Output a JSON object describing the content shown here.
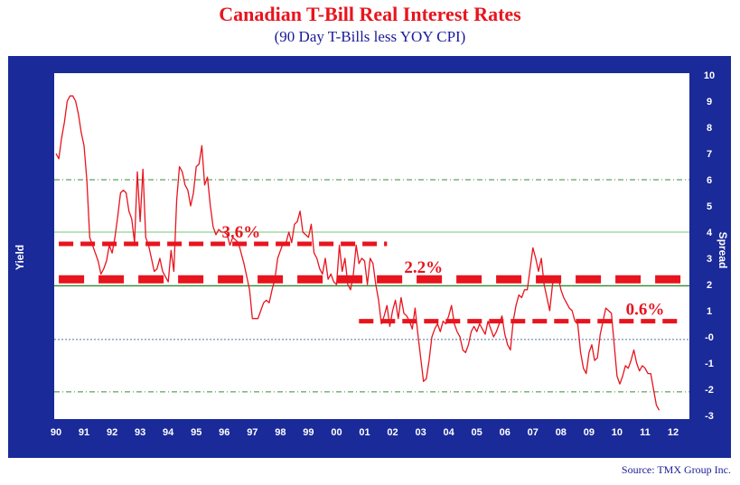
{
  "colors": {
    "frame": "#1a2a99",
    "plot": "#ffffff",
    "line": "#e8141e",
    "zero": "#2e8b2e",
    "grid": "#7fbf7f"
  },
  "source": "Source: TMX Group Inc.",
  "chart_data": {
    "type": "line",
    "title": "Canadian T-Bill Real Interest Rates",
    "subtitle": "(90 Day T-Bills less YOY CPI)",
    "ylabel_left": "Yield",
    "ylabel_right": "Spread",
    "xlim": [
      90,
      112.5
    ],
    "ylim": [
      -3,
      10
    ],
    "x_ticks": [
      "90",
      "91",
      "92",
      "93",
      "94",
      "95",
      "96",
      "97",
      "98",
      "99",
      "00",
      "01",
      "02",
      "03",
      "04",
      "05",
      "06",
      "07",
      "08",
      "09",
      "10",
      "11",
      "12"
    ],
    "y_ticks": [
      "10",
      "9",
      "8",
      "7",
      "6",
      "5",
      "4",
      "3",
      "2",
      "1",
      "-0",
      "-1",
      "-2",
      "-3"
    ],
    "reference_lines": [
      {
        "y": 6.0,
        "style": "dash-dot"
      },
      {
        "y": 4.0,
        "style": "solid-light"
      },
      {
        "y": 1.95,
        "style": "solid"
      },
      {
        "y": -0.1,
        "style": "dotted"
      },
      {
        "y": -2.1,
        "style": "dash-dot"
      }
    ],
    "average_lines": [
      {
        "label": "3.6%",
        "y": 3.55,
        "x_start": 90.1,
        "x_end": 101.8,
        "label_x": 96.6,
        "label_y": 3.8
      },
      {
        "label": "2.2%",
        "y": 2.2,
        "x_start": 90.1,
        "x_end": 112.3,
        "label_x": 103.1,
        "label_y": 2.45
      },
      {
        "label": "0.6%",
        "y": 0.6,
        "x_start": 100.8,
        "x_end": 112.3,
        "label_x": 111.0,
        "label_y": 0.85
      }
    ],
    "series": [
      {
        "values": [
          [
            90.0,
            7.0
          ],
          [
            90.1,
            6.8
          ],
          [
            90.2,
            7.6
          ],
          [
            90.3,
            8.2
          ],
          [
            90.4,
            9.0
          ],
          [
            90.5,
            9.2
          ],
          [
            90.6,
            9.2
          ],
          [
            90.7,
            9.0
          ],
          [
            90.8,
            8.5
          ],
          [
            90.9,
            7.8
          ],
          [
            91.0,
            7.3
          ],
          [
            91.1,
            6.0
          ],
          [
            91.2,
            3.8
          ],
          [
            91.3,
            3.5
          ],
          [
            91.4,
            3.2
          ],
          [
            91.5,
            2.9
          ],
          [
            91.6,
            2.4
          ],
          [
            91.7,
            2.6
          ],
          [
            91.8,
            2.9
          ],
          [
            91.9,
            3.5
          ],
          [
            92.0,
            3.2
          ],
          [
            92.1,
            3.8
          ],
          [
            92.2,
            4.6
          ],
          [
            92.3,
            5.5
          ],
          [
            92.4,
            5.6
          ],
          [
            92.5,
            5.5
          ],
          [
            92.6,
            4.8
          ],
          [
            92.7,
            4.5
          ],
          [
            92.8,
            3.6
          ],
          [
            92.9,
            6.3
          ],
          [
            93.0,
            4.4
          ],
          [
            93.1,
            6.4
          ],
          [
            93.2,
            3.8
          ],
          [
            93.3,
            3.5
          ],
          [
            93.4,
            3.0
          ],
          [
            93.5,
            2.5
          ],
          [
            93.6,
            2.6
          ],
          [
            93.7,
            3.0
          ],
          [
            93.8,
            2.5
          ],
          [
            93.9,
            2.3
          ],
          [
            94.0,
            2.1
          ],
          [
            94.1,
            3.3
          ],
          [
            94.2,
            2.5
          ],
          [
            94.3,
            5.2
          ],
          [
            94.4,
            6.5
          ],
          [
            94.5,
            6.3
          ],
          [
            94.6,
            5.8
          ],
          [
            94.7,
            5.6
          ],
          [
            94.8,
            5.0
          ],
          [
            94.9,
            5.5
          ],
          [
            95.0,
            6.5
          ],
          [
            95.1,
            6.6
          ],
          [
            95.2,
            7.3
          ],
          [
            95.3,
            5.8
          ],
          [
            95.4,
            6.1
          ],
          [
            95.5,
            5.0
          ],
          [
            95.6,
            4.2
          ],
          [
            95.7,
            3.9
          ],
          [
            95.8,
            4.1
          ],
          [
            95.9,
            4.0
          ],
          [
            96.0,
            4.0
          ],
          [
            96.1,
            3.9
          ],
          [
            96.2,
            3.5
          ],
          [
            96.3,
            3.8
          ],
          [
            96.5,
            3.6
          ],
          [
            96.6,
            3.2
          ],
          [
            96.7,
            2.8
          ],
          [
            96.8,
            2.3
          ],
          [
            96.9,
            1.8
          ],
          [
            97.0,
            0.7
          ],
          [
            97.1,
            0.7
          ],
          [
            97.2,
            0.7
          ],
          [
            97.3,
            1.0
          ],
          [
            97.4,
            1.3
          ],
          [
            97.5,
            1.4
          ],
          [
            97.6,
            1.3
          ],
          [
            97.7,
            1.8
          ],
          [
            97.8,
            2.2
          ],
          [
            97.9,
            3.0
          ],
          [
            98.0,
            3.3
          ],
          [
            98.1,
            3.6
          ],
          [
            98.2,
            3.6
          ],
          [
            98.3,
            4.0
          ],
          [
            98.4,
            3.6
          ],
          [
            98.5,
            4.3
          ],
          [
            98.6,
            4.4
          ],
          [
            98.7,
            4.8
          ],
          [
            98.8,
            4.0
          ],
          [
            98.9,
            3.9
          ],
          [
            99.0,
            3.8
          ],
          [
            99.1,
            4.3
          ],
          [
            99.2,
            3.2
          ],
          [
            99.3,
            3.0
          ],
          [
            99.4,
            2.6
          ],
          [
            99.5,
            2.4
          ],
          [
            99.6,
            3.0
          ],
          [
            99.7,
            2.2
          ],
          [
            99.8,
            2.4
          ],
          [
            99.9,
            2.1
          ],
          [
            100.0,
            2.0
          ],
          [
            100.1,
            3.5
          ],
          [
            100.2,
            2.5
          ],
          [
            100.3,
            3.0
          ],
          [
            100.4,
            2.0
          ],
          [
            100.5,
            1.8
          ],
          [
            100.6,
            2.4
          ],
          [
            100.7,
            3.5
          ],
          [
            100.8,
            2.8
          ],
          [
            100.9,
            3.0
          ],
          [
            101.0,
            2.9
          ],
          [
            101.1,
            2.0
          ],
          [
            101.2,
            3.0
          ],
          [
            101.3,
            2.8
          ],
          [
            101.4,
            2.0
          ],
          [
            101.5,
            1.4
          ],
          [
            101.6,
            0.5
          ],
          [
            101.7,
            0.8
          ],
          [
            101.8,
            1.2
          ],
          [
            101.9,
            0.4
          ],
          [
            102.0,
            1.0
          ],
          [
            102.1,
            1.4
          ],
          [
            102.2,
            0.7
          ],
          [
            102.3,
            1.5
          ],
          [
            102.4,
            0.9
          ],
          [
            102.5,
            0.8
          ],
          [
            102.6,
            0.6
          ],
          [
            102.7,
            0.3
          ],
          [
            102.8,
            1.1
          ],
          [
            102.9,
            0.1
          ],
          [
            103.0,
            -0.8
          ],
          [
            103.1,
            -1.7
          ],
          [
            103.2,
            -1.6
          ],
          [
            103.3,
            -0.9
          ],
          [
            103.4,
            0.0
          ],
          [
            103.5,
            0.3
          ],
          [
            103.6,
            0.5
          ],
          [
            103.7,
            0.2
          ],
          [
            103.8,
            0.6
          ],
          [
            103.9,
            0.5
          ],
          [
            104.0,
            0.8
          ],
          [
            104.1,
            1.2
          ],
          [
            104.2,
            0.5
          ],
          [
            104.3,
            0.2
          ],
          [
            104.4,
            0.0
          ],
          [
            104.5,
            -0.5
          ],
          [
            104.6,
            -0.6
          ],
          [
            104.7,
            -0.3
          ],
          [
            104.8,
            0.2
          ],
          [
            104.9,
            0.4
          ],
          [
            105.0,
            0.2
          ],
          [
            105.1,
            0.5
          ],
          [
            105.2,
            0.3
          ],
          [
            105.3,
            0.1
          ],
          [
            105.4,
            0.6
          ],
          [
            105.5,
            0.3
          ],
          [
            105.6,
            0.0
          ],
          [
            105.7,
            0.2
          ],
          [
            105.8,
            0.5
          ],
          [
            105.9,
            0.8
          ],
          [
            106.0,
            0.1
          ],
          [
            106.1,
            -0.3
          ],
          [
            106.2,
            -0.5
          ],
          [
            106.3,
            0.6
          ],
          [
            106.4,
            1.2
          ],
          [
            106.5,
            1.6
          ],
          [
            106.6,
            1.5
          ],
          [
            106.7,
            1.8
          ],
          [
            106.8,
            1.8
          ],
          [
            106.9,
            2.6
          ],
          [
            107.0,
            3.4
          ],
          [
            107.1,
            3.0
          ],
          [
            107.2,
            2.5
          ],
          [
            107.3,
            3.0
          ],
          [
            107.4,
            2.0
          ],
          [
            107.5,
            1.5
          ],
          [
            107.6,
            1.0
          ],
          [
            107.7,
            2.0
          ],
          [
            107.8,
            2.3
          ],
          [
            107.9,
            2.3
          ],
          [
            108.0,
            1.8
          ],
          [
            108.1,
            1.5
          ],
          [
            108.2,
            1.3
          ],
          [
            108.3,
            1.1
          ],
          [
            108.4,
            1.0
          ],
          [
            108.5,
            0.6
          ],
          [
            108.6,
            0.5
          ],
          [
            108.7,
            -0.6
          ],
          [
            108.8,
            -1.2
          ],
          [
            108.9,
            -1.4
          ],
          [
            109.0,
            -0.6
          ],
          [
            109.1,
            -0.3
          ],
          [
            109.2,
            -0.9
          ],
          [
            109.3,
            -0.8
          ],
          [
            109.4,
            0.1
          ],
          [
            109.5,
            0.6
          ],
          [
            109.6,
            1.1
          ],
          [
            109.7,
            1.0
          ],
          [
            109.8,
            0.9
          ],
          [
            109.9,
            -0.3
          ],
          [
            110.0,
            -1.5
          ],
          [
            110.1,
            -1.8
          ],
          [
            110.2,
            -1.5
          ],
          [
            110.3,
            -1.1
          ],
          [
            110.4,
            -1.2
          ],
          [
            110.5,
            -0.9
          ],
          [
            110.6,
            -0.5
          ],
          [
            110.7,
            -1.0
          ],
          [
            110.8,
            -1.3
          ],
          [
            110.9,
            -1.1
          ],
          [
            111.0,
            -1.2
          ],
          [
            111.1,
            -1.4
          ],
          [
            111.2,
            -1.4
          ],
          [
            111.3,
            -2.0
          ],
          [
            111.4,
            -2.6
          ],
          [
            111.5,
            -2.8
          ]
        ]
      }
    ]
  }
}
